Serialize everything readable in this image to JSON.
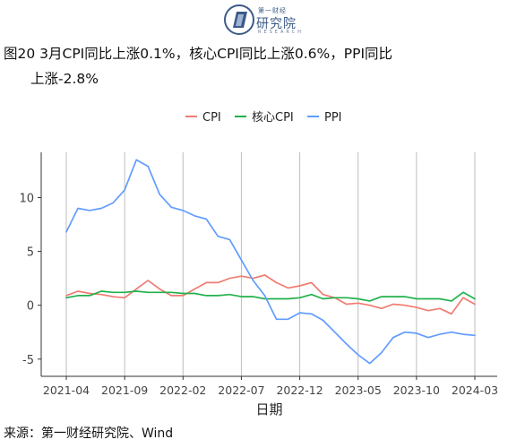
{
  "header": {
    "logo_cn_small": "第一财经",
    "logo_cn": "研究院",
    "logo_en": "RESEARCH"
  },
  "figure": {
    "title_line1": "图20 3月CPI同比上涨0.1%，核心CPI同比上涨0.6%，PPI同比",
    "title_line2": "上涨-2.8%",
    "source": "来源：第一财经研究院、Wind"
  },
  "chart_data": {
    "type": "line",
    "xlabel": "日期",
    "ylabel": "",
    "x": [
      "2021-04",
      "2021-05",
      "2021-06",
      "2021-07",
      "2021-08",
      "2021-09",
      "2021-10",
      "2021-11",
      "2021-12",
      "2022-01",
      "2022-02",
      "2022-03",
      "2022-04",
      "2022-05",
      "2022-06",
      "2022-07",
      "2022-08",
      "2022-09",
      "2022-10",
      "2022-11",
      "2022-12",
      "2023-01",
      "2023-02",
      "2023-03",
      "2023-04",
      "2023-05",
      "2023-06",
      "2023-07",
      "2023-08",
      "2023-09",
      "2023-10",
      "2023-11",
      "2023-12",
      "2024-01",
      "2024-02",
      "2024-03"
    ],
    "x_tick_labels": [
      "2021-04",
      "2021-09",
      "2022-02",
      "2022-07",
      "2022-12",
      "2023-05",
      "2023-10",
      "2024-03"
    ],
    "y_ticks": [
      -5,
      0,
      5,
      10
    ],
    "ylim": [
      -6.6,
      14.2
    ],
    "grid": "vertical lines at x tick positions",
    "legend_position": "top-center",
    "series": [
      {
        "name": "CPI",
        "color": "#f07c72",
        "values": [
          0.9,
          1.3,
          1.1,
          1.0,
          0.8,
          0.7,
          1.5,
          2.3,
          1.5,
          0.9,
          0.9,
          1.5,
          2.1,
          2.1,
          2.5,
          2.7,
          2.5,
          2.8,
          2.1,
          1.6,
          1.8,
          2.1,
          1.0,
          0.7,
          0.1,
          0.2,
          0.0,
          -0.3,
          0.1,
          0.0,
          -0.2,
          -0.5,
          -0.3,
          -0.8,
          0.7,
          0.1
        ]
      },
      {
        "name": "核心CPI",
        "color": "#22b14c",
        "values": [
          0.7,
          0.9,
          0.9,
          1.3,
          1.2,
          1.2,
          1.3,
          1.2,
          1.2,
          1.2,
          1.1,
          1.1,
          0.9,
          0.9,
          1.0,
          0.8,
          0.8,
          0.6,
          0.6,
          0.6,
          0.7,
          1.0,
          0.6,
          0.7,
          0.7,
          0.6,
          0.4,
          0.8,
          0.8,
          0.8,
          0.6,
          0.6,
          0.6,
          0.4,
          1.2,
          0.6
        ]
      },
      {
        "name": "PPI",
        "color": "#619cff",
        "values": [
          6.8,
          9.0,
          8.8,
          9.0,
          9.5,
          10.7,
          13.5,
          12.9,
          10.3,
          9.1,
          8.8,
          8.3,
          8.0,
          6.4,
          6.1,
          4.2,
          2.3,
          0.9,
          -1.3,
          -1.3,
          -0.7,
          -0.8,
          -1.4,
          -2.5,
          -3.6,
          -4.6,
          -5.4,
          -4.4,
          -3.0,
          -2.5,
          -2.6,
          -3.0,
          -2.7,
          -2.5,
          -2.7,
          -2.8
        ]
      }
    ]
  }
}
